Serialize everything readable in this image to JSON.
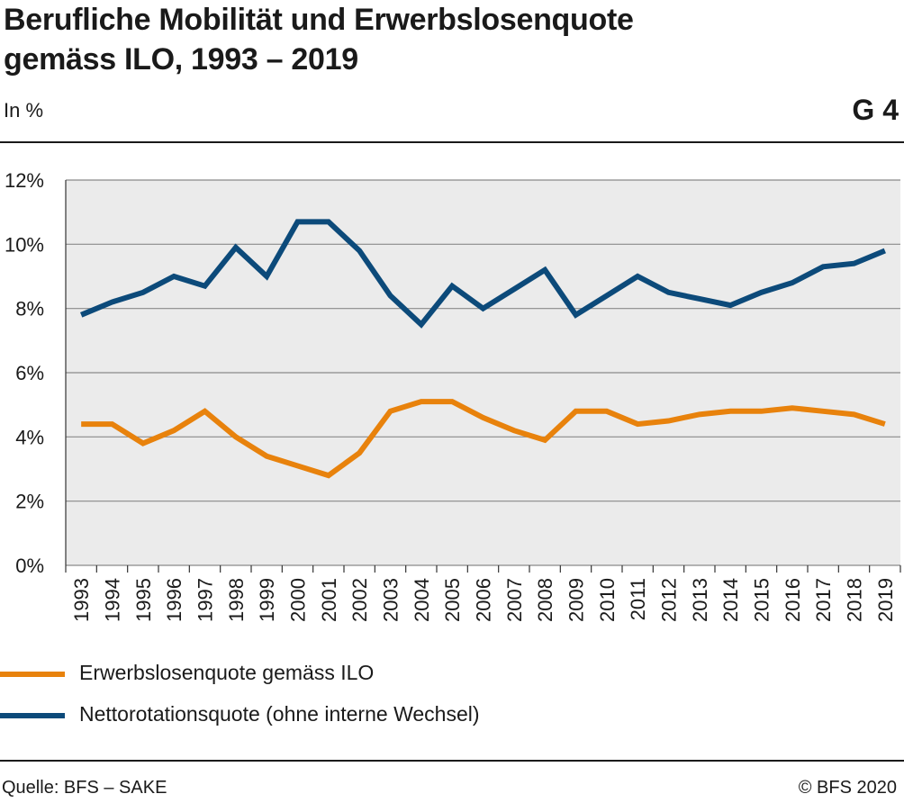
{
  "header": {
    "title_line1": "Berufliche Mobilität und Erwerbslosenquote",
    "title_line2": "gemäss ILO, 1993 – 2019",
    "unit": "In %",
    "code": "G 4"
  },
  "footer": {
    "source": "Quelle: BFS – SAKE",
    "copyright": "© BFS 2020"
  },
  "colors": {
    "orange": "#e8820c",
    "blue": "#0c4a7a",
    "plot_bg": "#ebebeb",
    "grid": "#8a8a8a"
  },
  "chart_data": {
    "type": "line",
    "title": "Berufliche Mobilität und Erwerbslosenquote gemäss ILO, 1993 – 2019",
    "ylabel": "In %",
    "ylim": [
      0,
      12
    ],
    "yticks": [
      "0%",
      "2%",
      "4%",
      "6%",
      "8%",
      "10%",
      "12%"
    ],
    "grid": true,
    "legend_position": "bottom",
    "categories": [
      "1993",
      "1994",
      "1995",
      "1996",
      "1997",
      "1998",
      "1999",
      "2000",
      "2001",
      "2002",
      "2003",
      "2004",
      "2005",
      "2006",
      "2007",
      "2008",
      "2009",
      "2010",
      "2011",
      "2012",
      "2013",
      "2014",
      "2015",
      "2016",
      "2017",
      "2018",
      "2019"
    ],
    "series": [
      {
        "name": "Erwerbslosenquote gemäss ILO",
        "color": "#e8820c",
        "values": [
          4.4,
          4.4,
          3.8,
          4.2,
          4.8,
          4.0,
          3.4,
          3.1,
          2.8,
          3.5,
          4.8,
          5.1,
          5.1,
          4.6,
          4.2,
          3.9,
          4.8,
          4.8,
          4.4,
          4.5,
          4.7,
          4.8,
          4.8,
          4.9,
          4.8,
          4.7,
          4.4
        ]
      },
      {
        "name": "Nettorotationsquote (ohne interne Wechsel)",
        "color": "#0c4a7a",
        "values": [
          7.8,
          8.2,
          8.5,
          9.0,
          8.7,
          9.9,
          9.0,
          10.7,
          10.7,
          9.8,
          8.4,
          7.5,
          8.7,
          8.0,
          8.6,
          9.2,
          7.8,
          8.4,
          9.0,
          8.5,
          8.3,
          8.1,
          8.5,
          8.8,
          9.3,
          9.4,
          9.8
        ]
      }
    ]
  }
}
